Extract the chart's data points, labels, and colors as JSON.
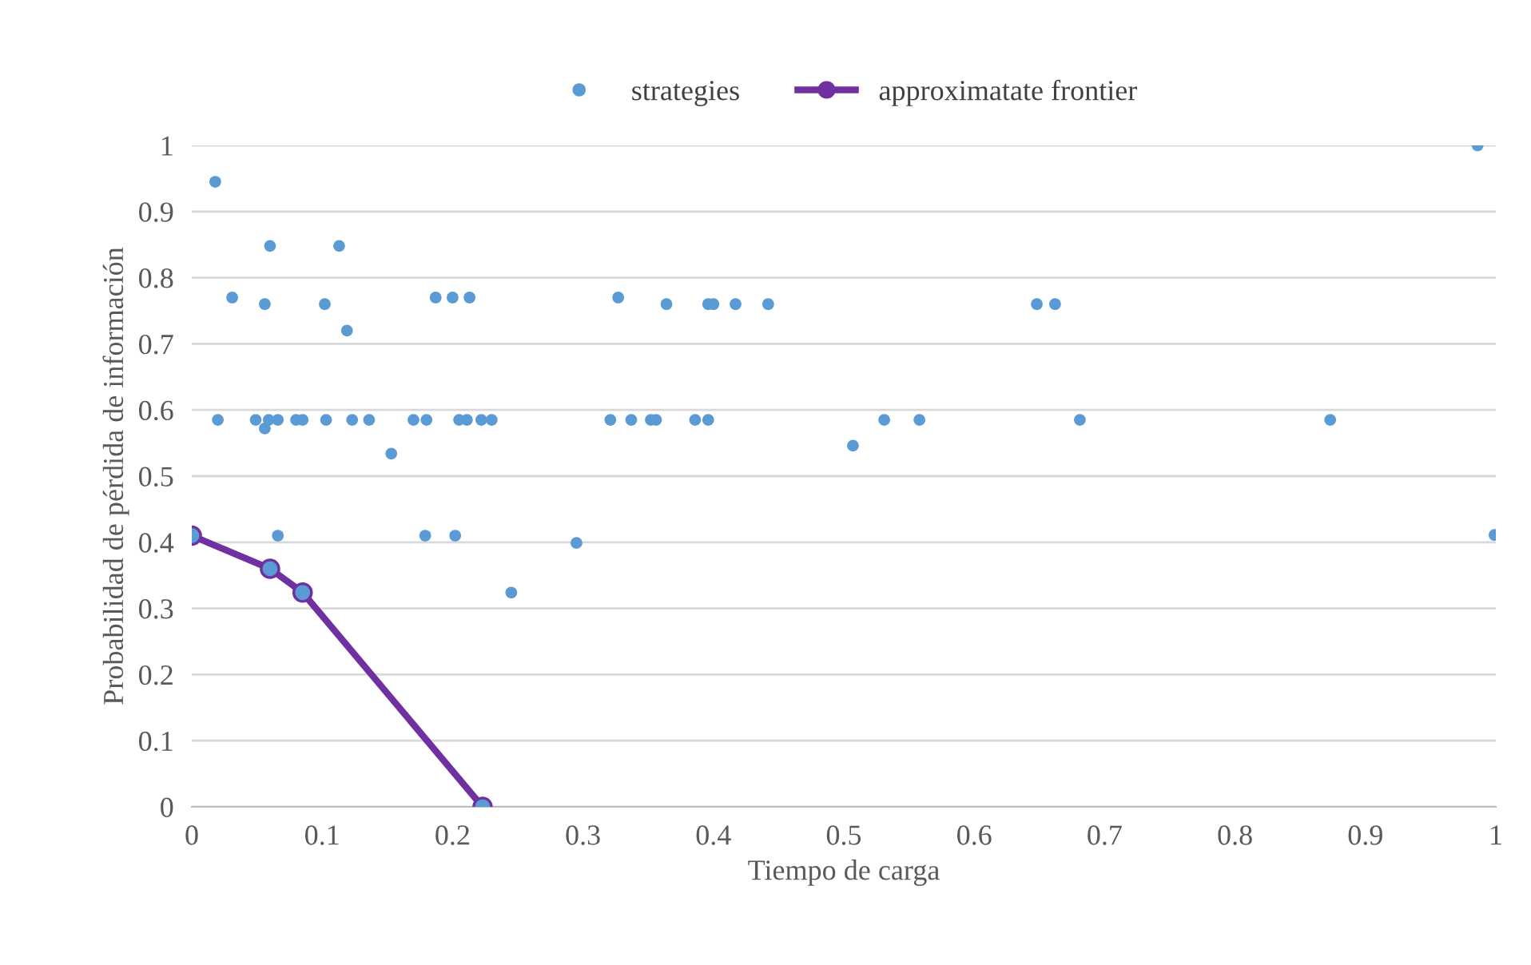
{
  "chart_data": {
    "type": "scatter",
    "xlabel": "Tiempo de carga",
    "ylabel": "Probabilidad de pérdida de información",
    "xlim": [
      0,
      1
    ],
    "ylim": [
      0,
      1
    ],
    "xticks": [
      0,
      0.1,
      0.2,
      0.3,
      0.4,
      0.5,
      0.6,
      0.7,
      0.8,
      0.9,
      1
    ],
    "yticks": [
      0,
      0.1,
      0.2,
      0.3,
      0.4,
      0.5,
      0.6,
      0.7,
      0.8,
      0.9,
      1
    ],
    "grid": "y",
    "legend": "top",
    "series": [
      {
        "name": "strategies",
        "color": "#5b9bd5",
        "marker": "circle",
        "x": [
          0.018,
          0.031,
          0.06,
          0.113,
          0.056,
          0.102,
          0.119,
          0.056,
          0.02,
          0.049,
          0.059,
          0.066,
          0.08,
          0.085,
          0.103,
          0.123,
          0.136,
          0.17,
          0.18,
          0.205,
          0.211,
          0.222,
          0.23,
          0.153,
          0.066,
          0.179,
          0.202,
          0.187,
          0.2,
          0.213,
          0.295,
          0.245,
          0.327,
          0.364,
          0.396,
          0.4,
          0.417,
          0.442,
          0.321,
          0.337,
          0.352,
          0.356,
          0.386,
          0.396,
          0.507,
          0.531,
          0.558,
          0.986,
          0.648,
          0.662,
          0.681,
          0.873,
          0.999
        ],
        "values": [
          0.945,
          0.77,
          0.848,
          0.848,
          0.76,
          0.76,
          0.72,
          0.572,
          0.585,
          0.585,
          0.585,
          0.585,
          0.585,
          0.585,
          0.585,
          0.585,
          0.585,
          0.585,
          0.585,
          0.585,
          0.585,
          0.585,
          0.585,
          0.534,
          0.41,
          0.41,
          0.41,
          0.77,
          0.77,
          0.77,
          0.399,
          0.324,
          0.77,
          0.76,
          0.76,
          0.76,
          0.76,
          0.76,
          0.585,
          0.585,
          0.585,
          0.585,
          0.585,
          0.585,
          0.546,
          0.585,
          0.585,
          1.0,
          0.76,
          0.76,
          0.585,
          0.585,
          0.411
        ]
      },
      {
        "name": "approximatate frontier",
        "type": "line",
        "color": "#7030a0",
        "marker": "circle",
        "line_style": "solid",
        "x": [
          0.0,
          0.06,
          0.085,
          0.223
        ],
        "values": [
          0.41,
          0.36,
          0.324,
          0.0
        ]
      }
    ]
  }
}
